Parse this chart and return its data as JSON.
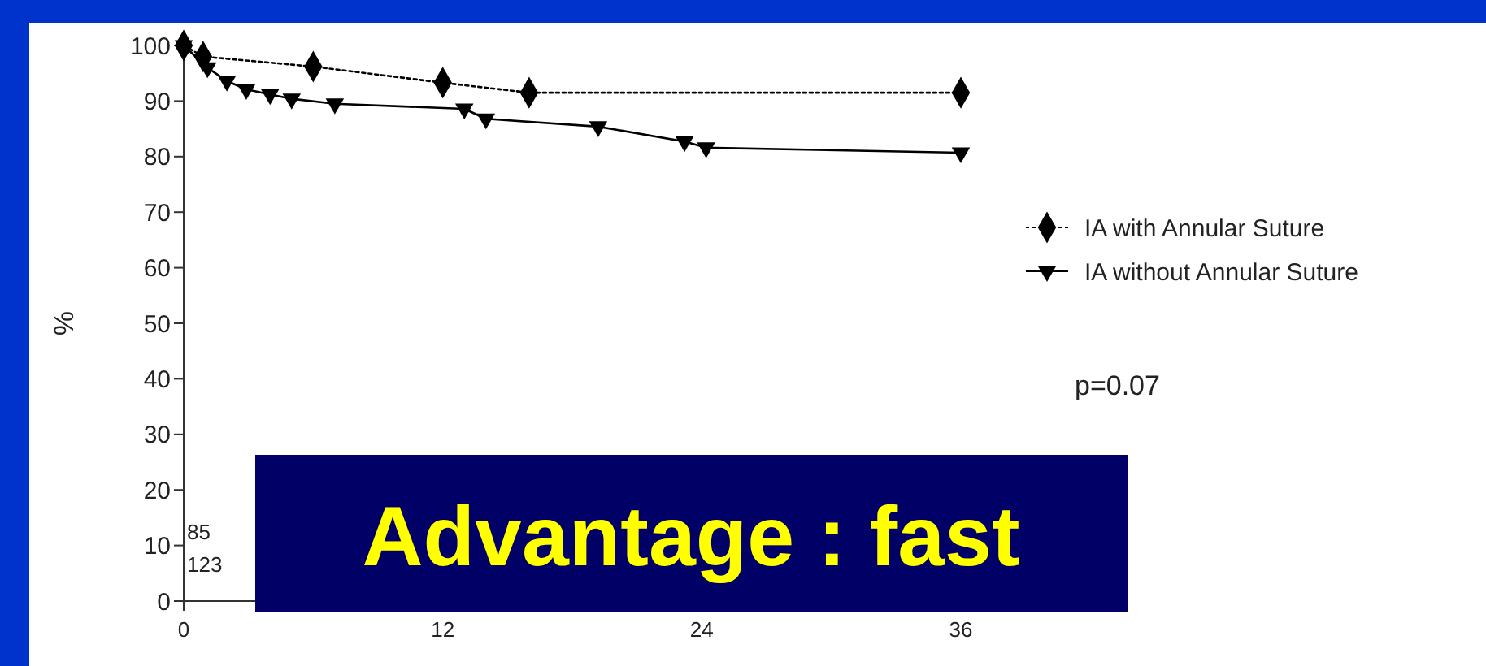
{
  "chart_data": {
    "type": "line",
    "ylabel": "%",
    "xlim": [
      0,
      36
    ],
    "xticks": [
      0,
      12,
      24,
      36
    ],
    "ylim": [
      0,
      100
    ],
    "yticks": [
      0,
      10,
      20,
      30,
      40,
      50,
      60,
      70,
      80,
      90,
      100
    ],
    "grid": false,
    "legend": "right",
    "series": [
      {
        "name": "IA with Annular Suture",
        "color": "#000000",
        "marker": "diamond",
        "line_style": "dotted",
        "x": [
          0,
          0.9,
          6,
          12,
          16,
          36
        ],
        "values": [
          100,
          98,
          96.2,
          93.3,
          91.5,
          91.5
        ]
      },
      {
        "name": "IA without Annular Suture",
        "color": "#000000",
        "marker": "triangle",
        "line_style": "solid",
        "x": [
          0,
          1.1,
          2,
          2.9,
          4,
          5,
          7,
          13,
          14,
          19.2,
          23.2,
          24.2,
          36
        ],
        "values": [
          100,
          96,
          93.6,
          92.1,
          91.2,
          90.4,
          89.5,
          88.6,
          86.8,
          85.4,
          82.7,
          81.6,
          80.7
        ]
      }
    ],
    "annotations": [
      "p=0.07",
      "85",
      "123",
      "Advantage : fast"
    ]
  }
}
